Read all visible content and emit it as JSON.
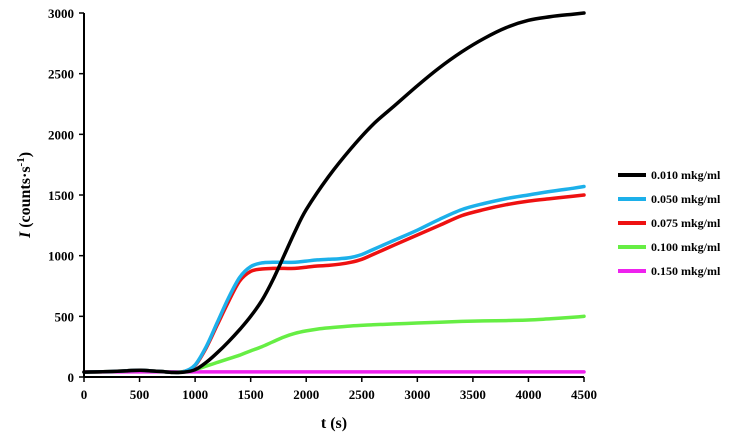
{
  "chart_data": {
    "type": "line",
    "title": "",
    "xlabel": "t (s)",
    "ylabel_main": "I",
    "ylabel_rest": " (counts·s",
    "ylabel_sup": "-1",
    "ylabel_close": ")",
    "xlim": [
      0,
      4500
    ],
    "ylim": [
      0,
      3000
    ],
    "xticks": [
      0,
      500,
      1000,
      1500,
      2000,
      2500,
      3000,
      3500,
      4000,
      4500
    ],
    "yticks": [
      0,
      500,
      1000,
      1500,
      2000,
      2500,
      3000
    ],
    "grid": false,
    "legend_position": "right",
    "series": [
      {
        "name": "0.010 mkg/ml",
        "color": "#000000",
        "x": [
          0,
          250,
          500,
          600,
          700,
          800,
          900,
          1000,
          1100,
          1200,
          1300,
          1400,
          1500,
          1600,
          1700,
          1800,
          1900,
          2000,
          2200,
          2400,
          2600,
          2800,
          3000,
          3200,
          3400,
          3600,
          3800,
          4000,
          4200,
          4400,
          4500
        ],
        "values": [
          40,
          45,
          55,
          50,
          45,
          38,
          40,
          60,
          120,
          200,
          290,
          390,
          500,
          630,
          800,
          1000,
          1200,
          1380,
          1650,
          1880,
          2080,
          2240,
          2400,
          2550,
          2680,
          2790,
          2880,
          2940,
          2970,
          2990,
          3000
        ]
      },
      {
        "name": "0.050 mkg/ml",
        "color": "#1CB0EA",
        "x": [
          0,
          250,
          500,
          600,
          700,
          800,
          900,
          1000,
          1100,
          1200,
          1300,
          1400,
          1500,
          1600,
          1700,
          1800,
          1900,
          2000,
          2100,
          2200,
          2300,
          2400,
          2500,
          2600,
          2800,
          3000,
          3200,
          3400,
          3600,
          3800,
          4000,
          4200,
          4400,
          4500
        ],
        "values": [
          40,
          45,
          55,
          50,
          45,
          38,
          45,
          100,
          250,
          450,
          650,
          820,
          910,
          940,
          945,
          945,
          945,
          955,
          965,
          970,
          975,
          985,
          1010,
          1050,
          1130,
          1210,
          1300,
          1380,
          1430,
          1470,
          1500,
          1530,
          1555,
          1570
        ]
      },
      {
        "name": "0.075 mkg/ml",
        "color": "#EE1111",
        "x": [
          0,
          250,
          500,
          600,
          700,
          800,
          900,
          1000,
          1100,
          1200,
          1300,
          1400,
          1500,
          1600,
          1700,
          1800,
          1900,
          2000,
          2100,
          2200,
          2300,
          2400,
          2500,
          2600,
          2800,
          3000,
          3200,
          3400,
          3600,
          3800,
          4000,
          4200,
          4400,
          4500
        ],
        "values": [
          40,
          45,
          55,
          50,
          45,
          38,
          45,
          95,
          240,
          430,
          620,
          790,
          870,
          890,
          895,
          895,
          895,
          905,
          915,
          920,
          930,
          945,
          970,
          1010,
          1090,
          1170,
          1250,
          1330,
          1380,
          1420,
          1450,
          1470,
          1490,
          1500
        ]
      },
      {
        "name": "0.100 mkg/ml",
        "color": "#66EE44",
        "x": [
          0,
          250,
          500,
          600,
          700,
          800,
          900,
          1000,
          1100,
          1200,
          1300,
          1400,
          1500,
          1600,
          1700,
          1800,
          1900,
          2000,
          2100,
          2200,
          2400,
          2600,
          2800,
          3000,
          3200,
          3400,
          3600,
          3800,
          4000,
          4200,
          4400,
          4500
        ],
        "values": [
          40,
          45,
          55,
          50,
          45,
          38,
          45,
          60,
          90,
          120,
          150,
          180,
          215,
          250,
          290,
          330,
          360,
          380,
          395,
          405,
          420,
          430,
          438,
          445,
          452,
          458,
          462,
          465,
          470,
          480,
          492,
          500
        ]
      },
      {
        "name": "0.150 mkg/ml",
        "color": "#EE22EE",
        "x": [
          0,
          500,
          800,
          1000,
          1500,
          2000,
          2500,
          3000,
          3500,
          4000,
          4500
        ],
        "values": [
          42,
          42,
          42,
          42,
          42,
          42,
          42,
          42,
          42,
          42,
          42
        ]
      }
    ]
  }
}
